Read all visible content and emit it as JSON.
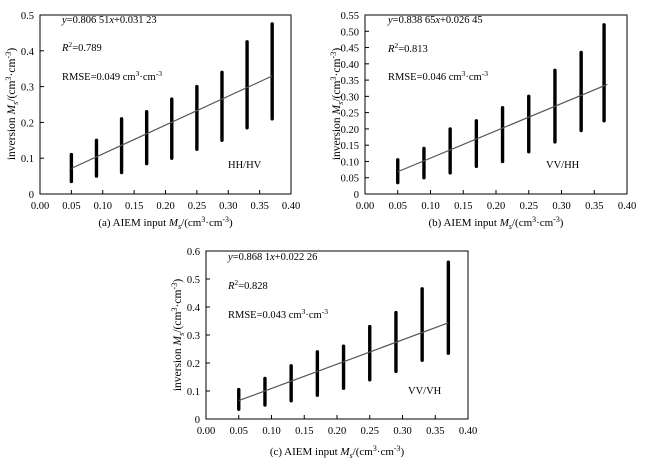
{
  "chart_data": [
    {
      "type": "scatter",
      "caption": "(a) AIEM input Ms/(cm³·cm⁻³)",
      "xlabel": "AIEM input Ms/(cm³·cm⁻³)",
      "ylabel": "inversion Ms/(cm³·cm⁻³)",
      "xlim": [
        0.0,
        0.4
      ],
      "ylim": [
        0.0,
        0.5
      ],
      "x_ticks": [
        "0.00",
        "0.05",
        "0.10",
        "0.15",
        "0.20",
        "0.25",
        "0.30",
        "0.35",
        "0.40"
      ],
      "y_ticks": [
        "0",
        "0.1",
        "0.2",
        "0.3",
        "0.4",
        "0.5"
      ],
      "equation": "y=0.806 51x+0.031 23",
      "r2": "R²=0.789",
      "rmse": "RMSE=0.049 cm³·cm⁻³",
      "label": "HH/HV",
      "fit": {
        "slope": 0.80651,
        "intercept": 0.03123,
        "x_range": [
          0.05,
          0.37
        ]
      },
      "columns": [
        {
          "x": 0.05,
          "y_min": 0.035,
          "y_max": 0.11
        },
        {
          "x": 0.09,
          "y_min": 0.05,
          "y_max": 0.15
        },
        {
          "x": 0.13,
          "y_min": 0.06,
          "y_max": 0.21
        },
        {
          "x": 0.17,
          "y_min": 0.085,
          "y_max": 0.23
        },
        {
          "x": 0.21,
          "y_min": 0.1,
          "y_max": 0.265
        },
        {
          "x": 0.25,
          "y_min": 0.125,
          "y_max": 0.3
        },
        {
          "x": 0.29,
          "y_min": 0.15,
          "y_max": 0.34
        },
        {
          "x": 0.33,
          "y_min": 0.185,
          "y_max": 0.425
        },
        {
          "x": 0.37,
          "y_min": 0.21,
          "y_max": 0.475
        }
      ]
    },
    {
      "type": "scatter",
      "caption": "(b) AIEM input Ms/(cm³·cm⁻³)",
      "xlabel": "AIEM input Ms/(cm³·cm⁻³)",
      "ylabel": "inversion Ms/(cm³·cm⁻³)",
      "xlim": [
        0.0,
        0.4
      ],
      "ylim": [
        0.0,
        0.55
      ],
      "x_ticks": [
        "0.00",
        "0.05",
        "0.10",
        "0.15",
        "0.20",
        "0.25",
        "0.30",
        "0.35",
        "0.40"
      ],
      "y_ticks": [
        "0",
        "0.05",
        "0.10",
        "0.15",
        "0.20",
        "0.25",
        "0.30",
        "0.35",
        "0.40",
        "0.45",
        "0.50",
        "0.55"
      ],
      "equation": "y=0.838 65x+0.026 45",
      "r2": "R²=0.813",
      "rmse": "RMSE=0.046 cm³·cm⁻³",
      "label": "VV/HH",
      "fit": {
        "slope": 0.83865,
        "intercept": 0.02645,
        "x_range": [
          0.05,
          0.37
        ]
      },
      "columns": [
        {
          "x": 0.05,
          "y_min": 0.035,
          "y_max": 0.105
        },
        {
          "x": 0.09,
          "y_min": 0.05,
          "y_max": 0.14
        },
        {
          "x": 0.13,
          "y_min": 0.065,
          "y_max": 0.2
        },
        {
          "x": 0.17,
          "y_min": 0.085,
          "y_max": 0.225
        },
        {
          "x": 0.21,
          "y_min": 0.1,
          "y_max": 0.265
        },
        {
          "x": 0.25,
          "y_min": 0.13,
          "y_max": 0.3
        },
        {
          "x": 0.29,
          "y_min": 0.16,
          "y_max": 0.38
        },
        {
          "x": 0.33,
          "y_min": 0.195,
          "y_max": 0.435
        },
        {
          "x": 0.365,
          "y_min": 0.225,
          "y_max": 0.52
        }
      ]
    },
    {
      "type": "scatter",
      "caption": "(c) AIEM input Ms/(cm³·cm⁻³)",
      "xlabel": "AIEM input Ms/(cm³·cm⁻³)",
      "ylabel": "inversion Ms/(cm³·cm⁻³)",
      "xlim": [
        0.0,
        0.4
      ],
      "ylim": [
        0.0,
        0.6
      ],
      "x_ticks": [
        "0.00",
        "0.05",
        "0.10",
        "0.15",
        "0.20",
        "0.25",
        "0.30",
        "0.35",
        "0.40"
      ],
      "y_ticks": [
        "0",
        "0.1",
        "0.2",
        "0.3",
        "0.4",
        "0.5",
        "0.6"
      ],
      "equation": "y=0.868 1x+0.022 26",
      "r2": "R²=0.828",
      "rmse": "RMSE=0.043 cm³·cm⁻³",
      "label": "VV/VH",
      "fit": {
        "slope": 0.8681,
        "intercept": 0.02226,
        "x_range": [
          0.05,
          0.37
        ]
      },
      "columns": [
        {
          "x": 0.05,
          "y_min": 0.035,
          "y_max": 0.105
        },
        {
          "x": 0.09,
          "y_min": 0.05,
          "y_max": 0.145
        },
        {
          "x": 0.13,
          "y_min": 0.065,
          "y_max": 0.19
        },
        {
          "x": 0.17,
          "y_min": 0.085,
          "y_max": 0.24
        },
        {
          "x": 0.21,
          "y_min": 0.11,
          "y_max": 0.26
        },
        {
          "x": 0.25,
          "y_min": 0.14,
          "y_max": 0.33
        },
        {
          "x": 0.29,
          "y_min": 0.17,
          "y_max": 0.38
        },
        {
          "x": 0.33,
          "y_min": 0.21,
          "y_max": 0.465
        },
        {
          "x": 0.37,
          "y_min": 0.235,
          "y_max": 0.56
        }
      ]
    }
  ]
}
